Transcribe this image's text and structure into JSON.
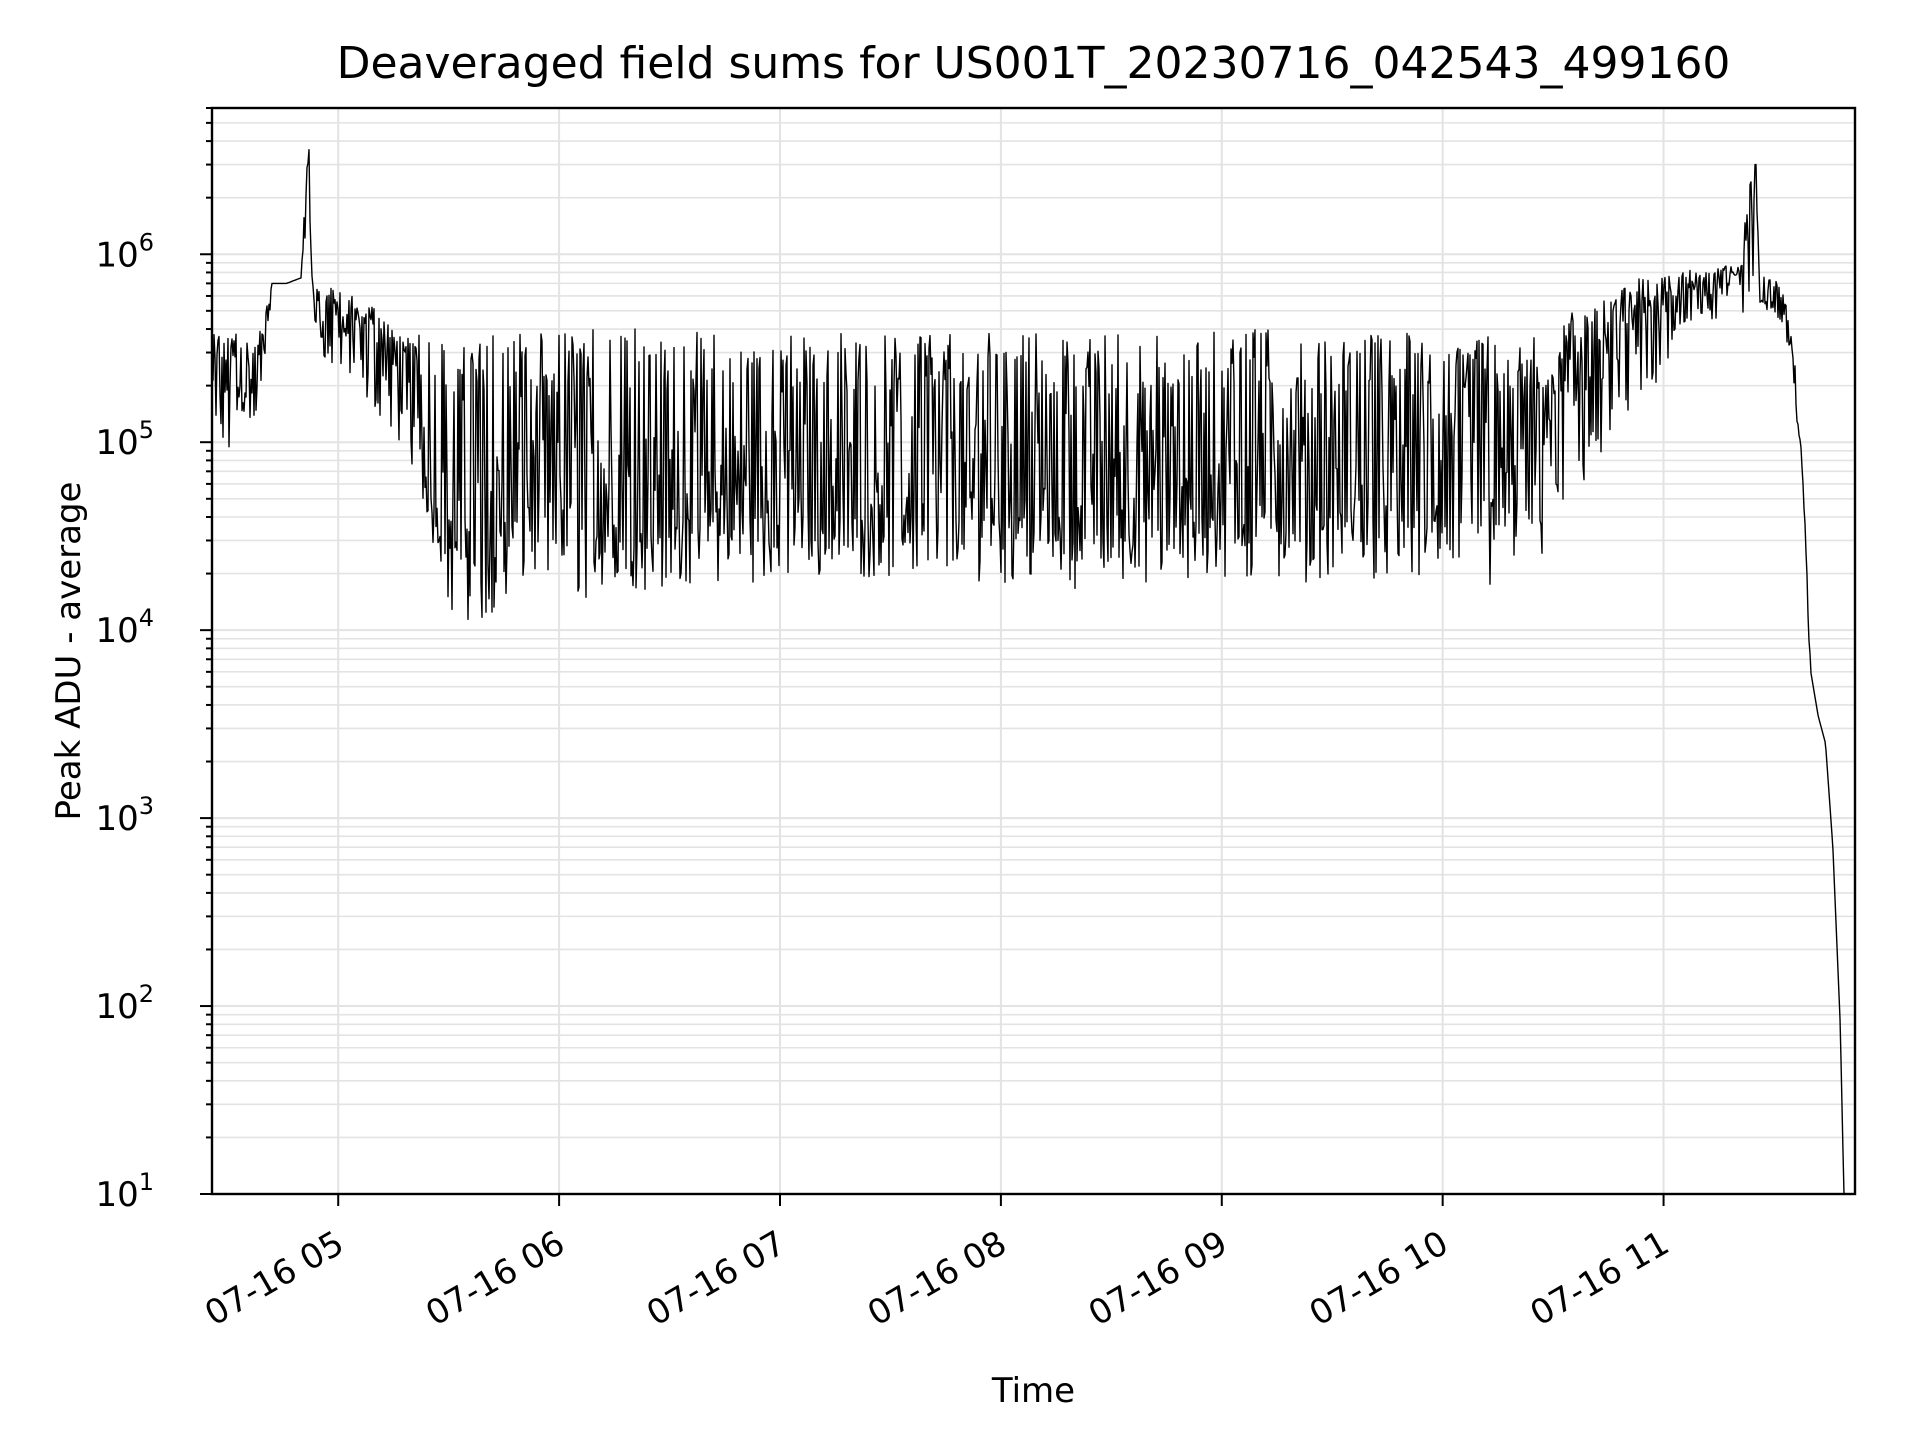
{
  "chart_data": {
    "type": "line",
    "title": "Deaveraged field sums for US001T_20230716_042543_499160",
    "xlabel": "Time",
    "ylabel": "Peak ADU - average",
    "yscale": "log",
    "ylim": [
      10,
      6000000
    ],
    "xlim": [
      "2023-07-16T04:25:43",
      "2023-07-16T11:52:00"
    ],
    "x_ticks": [
      "07-16 05",
      "07-16 06",
      "07-16 07",
      "07-16 08",
      "07-16 09",
      "07-16 10",
      "07-16 11"
    ],
    "y_ticks": [
      {
        "base": "10",
        "exp": "1"
      },
      {
        "base": "10",
        "exp": "2"
      },
      {
        "base": "10",
        "exp": "3"
      },
      {
        "base": "10",
        "exp": "4"
      },
      {
        "base": "10",
        "exp": "5"
      },
      {
        "base": "10",
        "exp": "6"
      }
    ],
    "grid": true,
    "line_color": "#000000",
    "series": [
      {
        "x": [
          "04:26",
          "04:30",
          "04:34",
          "04:38",
          "04:42",
          "04:46",
          "04:50",
          "04:52",
          "04:53",
          "04:55",
          "04:58",
          "05:04",
          "05:10",
          "05:16",
          "05:22",
          "05:26",
          "05:30",
          "05:36",
          "05:44",
          "05:50",
          "05:56",
          "06:04",
          "06:12",
          "06:22",
          "06:34",
          "06:46",
          "07:00",
          "07:15",
          "07:30",
          "07:45",
          "08:00",
          "08:15",
          "08:30",
          "08:45",
          "09:00",
          "09:15",
          "09:30",
          "09:45",
          "10:00",
          "10:15",
          "10:25",
          "10:35",
          "10:45",
          "10:55",
          "11:05",
          "11:15",
          "11:20",
          "11:25",
          "11:26",
          "11:30",
          "11:33",
          "11:36",
          "11:38",
          "11:40",
          "11:42",
          "11:44",
          "11:46",
          "11:48",
          "11:49",
          "11:50",
          "11:51"
        ],
        "y": [
          250000,
          200000,
          220000,
          210000,
          700000,
          700000,
          750000,
          3600000,
          650000,
          450000,
          500000,
          380000,
          350000,
          250000,
          180000,
          40000,
          30000,
          25000,
          35000,
          50000,
          60000,
          55000,
          50000,
          48000,
          52000,
          55000,
          60000,
          62000,
          60000,
          58000,
          62000,
          60000,
          58000,
          60000,
          62000,
          60000,
          58000,
          57000,
          56000,
          80000,
          120000,
          250000,
          350000,
          500000,
          650000,
          750000,
          700000,
          3000000,
          680000,
          650000,
          500000,
          200000,
          50000,
          6000,
          3500,
          2500,
          700,
          80,
          10,
          10,
          10
        ],
        "envelope_max": [
          400000,
          380000,
          400000,
          380000,
          800000,
          800000,
          900000,
          3600000,
          900000,
          650000,
          650000,
          600000,
          550000,
          450000,
          380000,
          350000,
          350000,
          350000,
          380000,
          380000,
          380000,
          400000,
          400000,
          400000,
          400000,
          400000,
          380000,
          380000,
          380000,
          380000,
          380000,
          380000,
          380000,
          380000,
          420000,
          400000,
          380000,
          380000,
          380000,
          380000,
          400000,
          450000,
          550000,
          700000,
          800000,
          850000,
          850000,
          3000000,
          800000,
          750000,
          600000,
          250000,
          60000,
          7000,
          4000,
          2800,
          800,
          90,
          10,
          10,
          10
        ],
        "envelope_min": [
          100000,
          80000,
          100000,
          120000,
          600000,
          620000,
          650000,
          700000,
          500000,
          300000,
          250000,
          200000,
          150000,
          100000,
          60000,
          25000,
          20000,
          15000,
          16000,
          17000,
          15000,
          15000,
          14000,
          16000,
          17000,
          18000,
          18000,
          19000,
          19000,
          18000,
          18000,
          17000,
          16000,
          17000,
          17000,
          18000,
          18000,
          19000,
          17000,
          16000,
          20000,
          40000,
          90000,
          150000,
          400000,
          450000,
          450000,
          500000,
          500000,
          500000,
          400000,
          150000,
          40000,
          5000,
          3000,
          2200,
          600,
          70,
          10,
          10,
          10
        ]
      }
    ]
  }
}
